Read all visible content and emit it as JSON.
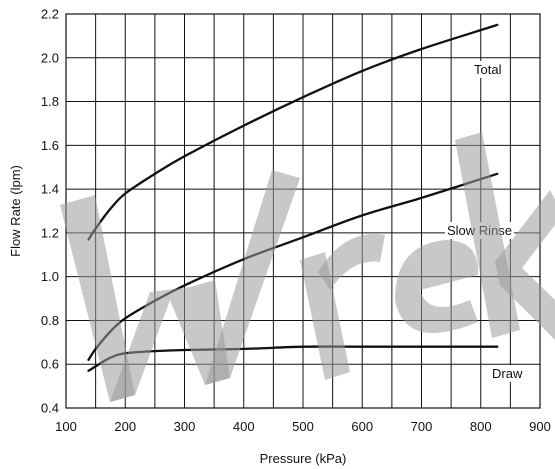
{
  "chart_data": {
    "type": "line",
    "title": "",
    "xlabel": "Pressure (kPa)",
    "ylabel": "Flow Rate (lpm)",
    "xlim": [
      100,
      900
    ],
    "ylim": [
      0.4,
      2.2
    ],
    "x_ticks": [
      100,
      200,
      300,
      400,
      500,
      600,
      700,
      800,
      900
    ],
    "y_ticks": [
      0.4,
      0.6,
      0.8,
      1.0,
      1.2,
      1.4,
      1.6,
      1.8,
      2.0,
      2.2
    ],
    "x_tick_labels": [
      "100",
      "200",
      "300",
      "400",
      "500",
      "600",
      "700",
      "800",
      "900"
    ],
    "y_tick_labels": [
      "0.4",
      "0.6",
      "0.8",
      "1.0",
      "1.2",
      "1.4",
      "1.6",
      "1.8",
      "2.0",
      "2.2"
    ],
    "grid": true,
    "legend": "inline labels",
    "series": [
      {
        "name": "Total",
        "x": [
          138,
          150,
          175,
          200,
          250,
          300,
          400,
          500,
          600,
          700,
          828
        ],
        "y": [
          1.17,
          1.22,
          1.31,
          1.38,
          1.47,
          1.55,
          1.69,
          1.82,
          1.94,
          2.04,
          2.15
        ]
      },
      {
        "name": "Slow Rinse",
        "x": [
          138,
          150,
          175,
          200,
          250,
          300,
          400,
          500,
          600,
          700,
          828
        ],
        "y": [
          0.62,
          0.67,
          0.75,
          0.81,
          0.89,
          0.96,
          1.08,
          1.18,
          1.28,
          1.36,
          1.47
        ]
      },
      {
        "name": "Draw",
        "x": [
          138,
          150,
          175,
          200,
          250,
          300,
          400,
          500,
          600,
          700,
          828
        ],
        "y": [
          0.57,
          0.59,
          0.63,
          0.65,
          0.66,
          0.665,
          0.67,
          0.68,
          0.68,
          0.68,
          0.68
        ]
      }
    ]
  },
  "watermark": {
    "text": "Wrek"
  }
}
